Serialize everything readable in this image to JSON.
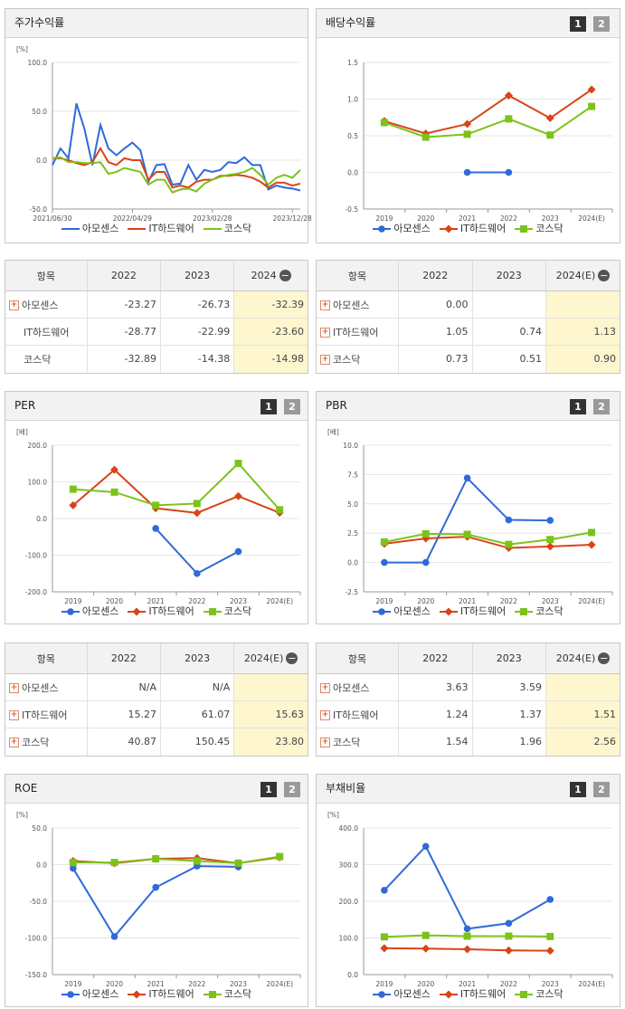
{
  "colors": {
    "a": "#2f6ad8",
    "b": "#d94418",
    "c": "#7cc21a"
  },
  "legend": [
    "아모센스",
    "IT하드웨어",
    "코스닥"
  ],
  "charts": {
    "returns": {
      "title": "주가수익률",
      "unit": "[%]",
      "pages": null,
      "chart_data": {
        "type": "line",
        "title": "주가수익률",
        "ylabel": "[%]",
        "ylim": [
          -50,
          100
        ],
        "yticks": [
          "100.0",
          "50.0",
          "0.0",
          "-50.0"
        ],
        "yticks_val": [
          100,
          50,
          0,
          -50
        ],
        "xlim": [
          0,
          31
        ],
        "xticks": [
          "2021/06/30",
          "2022/04/29",
          "2023/02/28",
          "2023/12/28"
        ],
        "xticks_val": [
          0,
          10,
          20,
          30
        ],
        "series": [
          {
            "name": "아모센스",
            "values": [
              [
                0,
                -5
              ],
              [
                1,
                12
              ],
              [
                2,
                2
              ],
              [
                3,
                58
              ],
              [
                4,
                32
              ],
              [
                5,
                -5
              ],
              [
                6,
                36
              ],
              [
                7,
                12
              ],
              [
                8,
                5
              ],
              [
                9,
                12
              ],
              [
                10,
                18
              ],
              [
                11,
                10
              ],
              [
                12,
                -22
              ],
              [
                13,
                -5
              ],
              [
                14,
                -4
              ],
              [
                15,
                -25
              ],
              [
                16,
                -24
              ],
              [
                17,
                -5
              ],
              [
                18,
                -20
              ],
              [
                19,
                -10
              ],
              [
                20,
                -12
              ],
              [
                21,
                -10
              ],
              [
                22,
                -2
              ],
              [
                23,
                -3
              ],
              [
                24,
                3
              ],
              [
                25,
                -5
              ],
              [
                26,
                -5
              ],
              [
                27,
                -30
              ],
              [
                28,
                -26
              ],
              [
                29,
                -28
              ],
              [
                30,
                -29
              ],
              [
                31,
                -31
              ]
            ]
          },
          {
            "name": "IT하드웨어",
            "values": [
              [
                0,
                2
              ],
              [
                1,
                2
              ],
              [
                2,
                0
              ],
              [
                3,
                -3
              ],
              [
                4,
                -5
              ],
              [
                5,
                -2
              ],
              [
                6,
                12
              ],
              [
                7,
                -2
              ],
              [
                8,
                -5
              ],
              [
                9,
                2
              ],
              [
                10,
                0
              ],
              [
                11,
                0
              ],
              [
                12,
                -20
              ],
              [
                13,
                -12
              ],
              [
                14,
                -12
              ],
              [
                15,
                -28
              ],
              [
                16,
                -26
              ],
              [
                17,
                -28
              ],
              [
                18,
                -22
              ],
              [
                19,
                -20
              ],
              [
                20,
                -20
              ],
              [
                21,
                -16
              ],
              [
                22,
                -16
              ],
              [
                23,
                -15
              ],
              [
                24,
                -16
              ],
              [
                25,
                -18
              ],
              [
                26,
                -22
              ],
              [
                27,
                -28
              ],
              [
                28,
                -23
              ],
              [
                29,
                -23
              ],
              [
                30,
                -26
              ],
              [
                31,
                -24
              ]
            ]
          },
          {
            "name": "코스닥",
            "values": [
              [
                0,
                2
              ],
              [
                1,
                3
              ],
              [
                2,
                -2
              ],
              [
                3,
                -2
              ],
              [
                4,
                -3
              ],
              [
                5,
                -3
              ],
              [
                6,
                -2
              ],
              [
                7,
                -14
              ],
              [
                8,
                -12
              ],
              [
                9,
                -8
              ],
              [
                10,
                -10
              ],
              [
                11,
                -12
              ],
              [
                12,
                -25
              ],
              [
                13,
                -20
              ],
              [
                14,
                -20
              ],
              [
                15,
                -33
              ],
              [
                16,
                -30
              ],
              [
                17,
                -29
              ],
              [
                18,
                -32
              ],
              [
                19,
                -24
              ],
              [
                20,
                -20
              ],
              [
                21,
                -17
              ],
              [
                22,
                -15
              ],
              [
                23,
                -14
              ],
              [
                24,
                -12
              ],
              [
                25,
                -8
              ],
              [
                26,
                -15
              ],
              [
                27,
                -25
              ],
              [
                28,
                -18
              ],
              [
                29,
                -15
              ],
              [
                30,
                -18
              ],
              [
                31,
                -10
              ]
            ]
          }
        ]
      }
    },
    "dividend": {
      "title": "배당수익률",
      "unit": "",
      "pages": [
        "1",
        "2"
      ],
      "chart_data": {
        "type": "line",
        "title": "배당수익률",
        "ylim": [
          -0.5,
          1.5
        ],
        "yticks": [
          "1.5",
          "1.0",
          "0.5",
          "0.0",
          "-0.5"
        ],
        "yticks_val": [
          1.5,
          1.0,
          0.5,
          0.0,
          -0.5
        ],
        "categories": [
          "2019",
          "2020",
          "2021",
          "2022",
          "2023",
          "2024(E)"
        ],
        "series": [
          {
            "name": "아모센스",
            "values": [
              null,
              null,
              0.0,
              0.0,
              null,
              null
            ]
          },
          {
            "name": "IT하드웨어",
            "values": [
              0.7,
              0.53,
              0.66,
              1.05,
              0.74,
              1.13
            ]
          },
          {
            "name": "코스닥",
            "values": [
              0.68,
              0.48,
              0.52,
              0.73,
              0.51,
              0.9
            ]
          }
        ]
      }
    },
    "per": {
      "title": "PER",
      "unit": "[배]",
      "pages": [
        "1",
        "2"
      ],
      "chart_data": {
        "type": "line",
        "title": "PER",
        "ylabel": "[배]",
        "ylim": [
          -200,
          200
        ],
        "yticks": [
          "200.0",
          "100.0",
          "0.0",
          "-100.0",
          "-200.0"
        ],
        "yticks_val": [
          200,
          100,
          0,
          -100,
          -200
        ],
        "categories": [
          "2019",
          "2020",
          "2021",
          "2022",
          "2023",
          "2024(E)"
        ],
        "series": [
          {
            "name": "아모센스",
            "values": [
              null,
              null,
              -27,
              -150,
              -90,
              null
            ]
          },
          {
            "name": "IT하드웨어",
            "values": [
              36,
              133,
              28,
              15.27,
              61.07,
              15.63
            ]
          },
          {
            "name": "코스닥",
            "values": [
              80,
              72,
              36,
              40.87,
              150.45,
              23.8
            ]
          }
        ]
      }
    },
    "pbr": {
      "title": "PBR",
      "unit": "[배]",
      "pages": [
        "1",
        "2"
      ],
      "chart_data": {
        "type": "line",
        "title": "PBR",
        "ylabel": "[배]",
        "ylim": [
          -2.5,
          10
        ],
        "yticks": [
          "10.0",
          "7.5",
          "5.0",
          "2.5",
          "0.0",
          "-2.5"
        ],
        "yticks_val": [
          10,
          7.5,
          5,
          2.5,
          0,
          -2.5
        ],
        "categories": [
          "2019",
          "2020",
          "2021",
          "2022",
          "2023",
          "2024(E)"
        ],
        "series": [
          {
            "name": "아모센스",
            "values": [
              0.0,
              0.0,
              7.2,
              3.63,
              3.59,
              null
            ]
          },
          {
            "name": "IT하드웨어",
            "values": [
              1.6,
              2.05,
              2.2,
              1.24,
              1.37,
              1.51
            ]
          },
          {
            "name": "코스닥",
            "values": [
              1.75,
              2.45,
              2.4,
              1.54,
              1.96,
              2.56
            ]
          }
        ]
      }
    },
    "roe": {
      "title": "ROE",
      "unit": "[%]",
      "pages": [
        "1",
        "2"
      ],
      "chart_data": {
        "type": "line",
        "title": "ROE",
        "ylabel": "[%]",
        "ylim": [
          -150,
          50
        ],
        "yticks": [
          "50.0",
          "0.0",
          "-50.0",
          "-100.0",
          "-150.0"
        ],
        "yticks_val": [
          50,
          0,
          -50,
          -100,
          -150
        ],
        "categories": [
          "2019",
          "2020",
          "2021",
          "2022",
          "2023",
          "2024(E)"
        ],
        "series": [
          {
            "name": "아모센스",
            "values": [
              -5,
              -98,
              -31,
              -2,
              -3,
              null
            ]
          },
          {
            "name": "IT하드웨어",
            "values": [
              5,
              2,
              8,
              9,
              2,
              10
            ]
          },
          {
            "name": "코스닥",
            "values": [
              3,
              3,
              8,
              5,
              2,
              11
            ]
          }
        ]
      }
    },
    "debt": {
      "title": "부채비율",
      "unit": "[%]",
      "pages": [
        "1",
        "2"
      ],
      "chart_data": {
        "type": "line",
        "title": "부채비율",
        "ylabel": "[%]",
        "ylim": [
          0,
          400
        ],
        "yticks": [
          "400.0",
          "300.0",
          "200.0",
          "100.0",
          "0.0"
        ],
        "yticks_val": [
          400,
          300,
          200,
          100,
          0
        ],
        "categories": [
          "2019",
          "2020",
          "2021",
          "2022",
          "2023",
          "2024(E)"
        ],
        "series": [
          {
            "name": "아모센스",
            "values": [
              230,
              350,
              125,
              140,
              205,
              null
            ]
          },
          {
            "name": "IT하드웨어",
            "values": [
              72,
              71,
              69,
              66,
              65,
              null
            ]
          },
          {
            "name": "코스닥",
            "values": [
              103,
              107,
              105,
              105,
              104,
              null
            ]
          }
        ]
      }
    }
  },
  "tables": {
    "returns": {
      "headers": [
        "항목",
        "2022",
        "2023",
        "2024"
      ],
      "rows": [
        {
          "label": "아모센스",
          "plus": true,
          "cells": [
            "-23.27",
            "-26.73",
            "-32.39"
          ]
        },
        {
          "label": "IT하드웨어",
          "plus": false,
          "cells": [
            "-28.77",
            "-22.99",
            "-23.60"
          ]
        },
        {
          "label": "코스닥",
          "plus": false,
          "cells": [
            "-32.89",
            "-14.38",
            "-14.98"
          ]
        }
      ]
    },
    "dividend": {
      "headers": [
        "항목",
        "2022",
        "2023",
        "2024(E)"
      ],
      "rows": [
        {
          "label": "아모센스",
          "plus": true,
          "cells": [
            "0.00",
            "",
            ""
          ]
        },
        {
          "label": "IT하드웨어",
          "plus": true,
          "cells": [
            "1.05",
            "0.74",
            "1.13"
          ]
        },
        {
          "label": "코스닥",
          "plus": true,
          "cells": [
            "0.73",
            "0.51",
            "0.90"
          ]
        }
      ]
    },
    "per": {
      "headers": [
        "항목",
        "2022",
        "2023",
        "2024(E)"
      ],
      "rows": [
        {
          "label": "아모센스",
          "plus": true,
          "cells": [
            "N/A",
            "N/A",
            ""
          ]
        },
        {
          "label": "IT하드웨어",
          "plus": true,
          "cells": [
            "15.27",
            "61.07",
            "15.63"
          ]
        },
        {
          "label": "코스닥",
          "plus": true,
          "cells": [
            "40.87",
            "150.45",
            "23.80"
          ]
        }
      ]
    },
    "pbr": {
      "headers": [
        "항목",
        "2022",
        "2023",
        "2024(E)"
      ],
      "rows": [
        {
          "label": "아모센스",
          "plus": true,
          "cells": [
            "3.63",
            "3.59",
            ""
          ]
        },
        {
          "label": "IT하드웨어",
          "plus": true,
          "cells": [
            "1.24",
            "1.37",
            "1.51"
          ]
        },
        {
          "label": "코스닥",
          "plus": true,
          "cells": [
            "1.54",
            "1.96",
            "2.56"
          ]
        }
      ]
    }
  }
}
